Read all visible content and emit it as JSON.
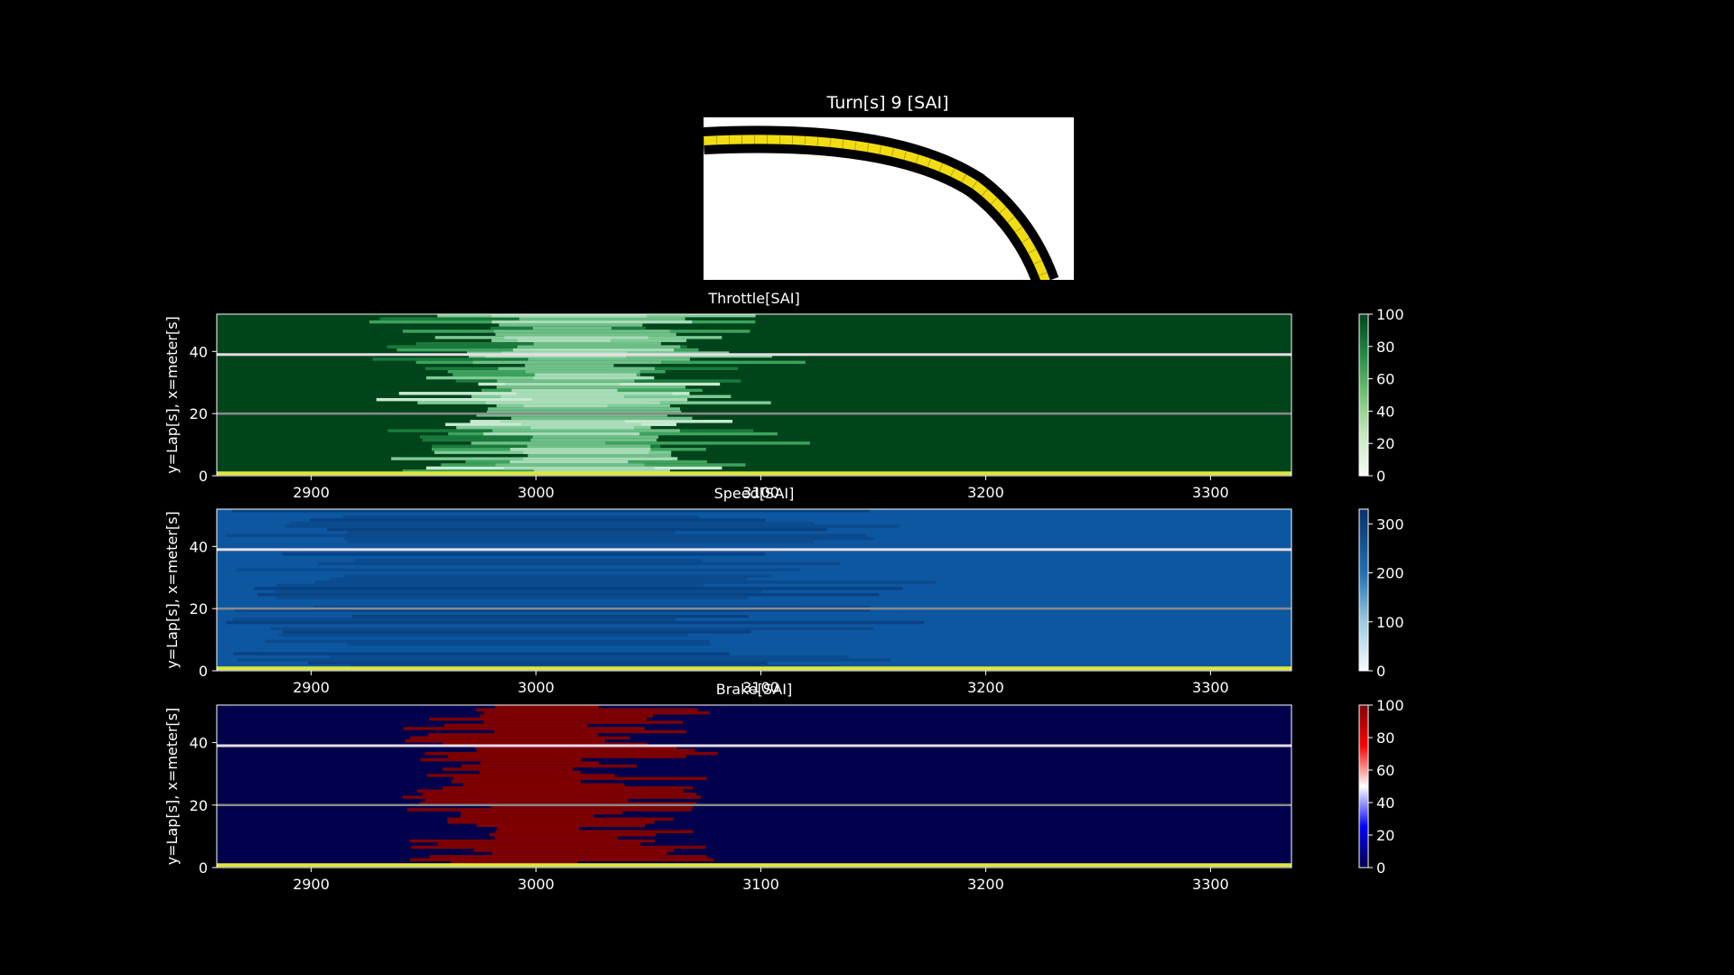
{
  "figure": {
    "title": "Turn[s] 9 [SAI]",
    "background": "#000000"
  },
  "chart_data": [
    {
      "type": "heatmap",
      "title": "Throttle[SAI]",
      "ylabel": "y=Lap[s], x=meter[s]",
      "xlim": [
        2858,
        3336
      ],
      "ylim": [
        0,
        52
      ],
      "xticks": [
        2900,
        3000,
        3100,
        3200,
        3300
      ],
      "yticks": [
        0,
        20,
        40
      ],
      "colormap": "Greens",
      "colorbar": {
        "ticks": [
          0,
          20,
          40,
          60,
          80,
          100
        ],
        "range": [
          0,
          100
        ]
      },
      "base_value": 100,
      "feature_center_x": 3015,
      "feature_value_min": 35,
      "highlight_laps": {
        "white": 39,
        "gray": 20,
        "yellow": 0.5
      }
    },
    {
      "type": "heatmap",
      "title": "Speed[SAI]",
      "ylabel": "y=Lap[s], x=meter[s]",
      "xlim": [
        2858,
        3336
      ],
      "ylim": [
        0,
        52
      ],
      "xticks": [
        2900,
        3000,
        3100,
        3200,
        3300
      ],
      "yticks": [
        0,
        20,
        40
      ],
      "colormap": "Blues",
      "colorbar": {
        "ticks": [
          0,
          100,
          200,
          300
        ],
        "range": [
          0,
          330
        ]
      },
      "base_value": 240,
      "feature_center_x": 3000,
      "feature_value_min": 250,
      "highlight_laps": {
        "white": 39,
        "gray": 20,
        "yellow": 0.5
      }
    },
    {
      "type": "heatmap",
      "title": "Brake[SAI]",
      "ylabel": "y=Lap[s], x=meter[s]",
      "xlim": [
        2858,
        3336
      ],
      "ylim": [
        0,
        52
      ],
      "xticks": [
        2900,
        3000,
        3100,
        3200,
        3300
      ],
      "yticks": [
        0,
        20,
        40
      ],
      "colormap": "seismic",
      "colorbar": {
        "ticks": [
          0,
          20,
          40,
          60,
          80,
          100
        ],
        "range": [
          0,
          100
        ]
      },
      "base_value": 0,
      "feature_center_x": 3010,
      "feature_value_min": 100,
      "highlight_laps": {
        "white": 39,
        "gray": 20,
        "yellow": 0.5
      }
    }
  ]
}
